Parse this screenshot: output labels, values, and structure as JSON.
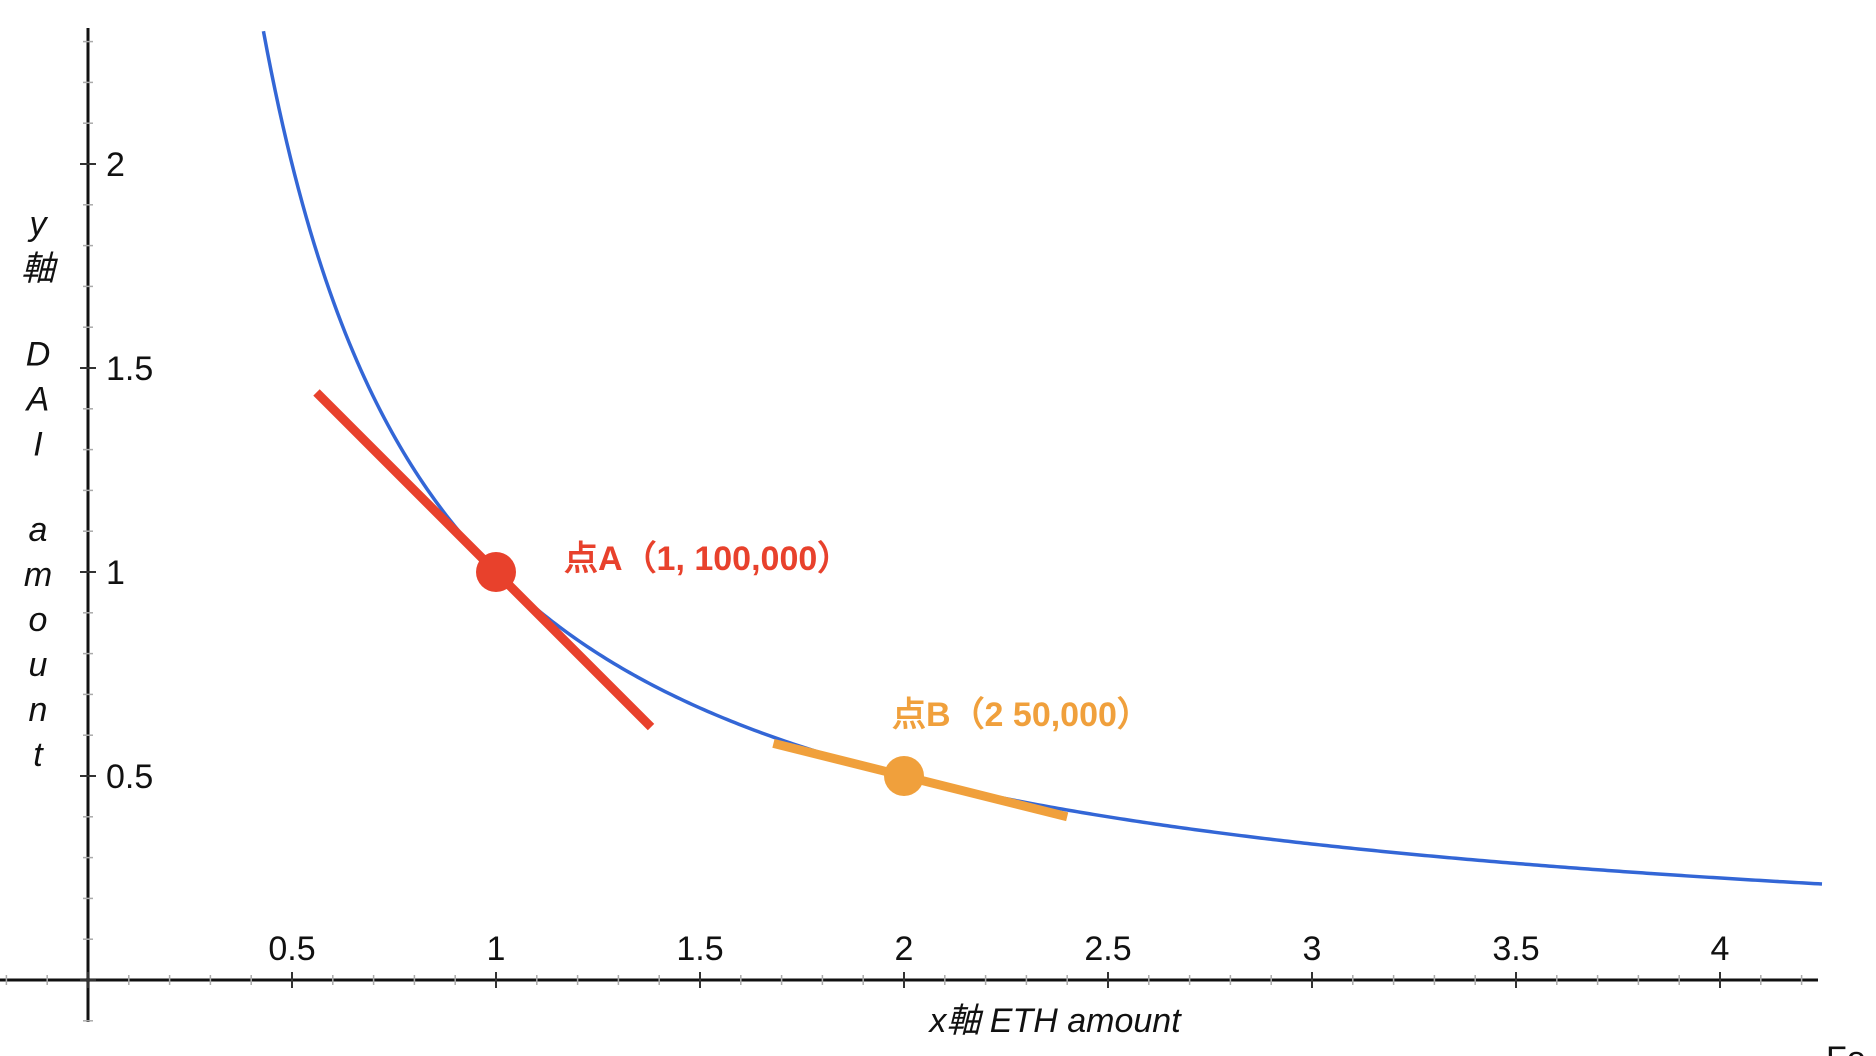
{
  "chart_data": {
    "type": "line",
    "title": "",
    "xlabel": "x軸 ETH amount",
    "ylabel": "y軸 DAI amount",
    "xlim": [
      -0.2,
      4.25
    ],
    "ylim": [
      -0.1,
      2.3
    ],
    "x_ticks": [
      0.5,
      1,
      1.5,
      2,
      2.5,
      3,
      3.5,
      4
    ],
    "x_tick_labels": [
      "0.5",
      "1",
      "1.5",
      "2",
      "2.5",
      "3",
      "3.5",
      "4"
    ],
    "y_ticks": [
      0.5,
      1,
      1.5,
      2
    ],
    "y_tick_labels": [
      "0.5",
      "1",
      "1.5",
      "2"
    ],
    "grid": false,
    "series": [
      {
        "type": "curve",
        "equation": "y = 1 / x",
        "x_range": [
          0.43,
          4.25
        ],
        "color": "#3366d6"
      }
    ],
    "points": [
      {
        "x": 1,
        "y": 1,
        "label": "点A（1, 100,000）",
        "color": "#e8412c"
      },
      {
        "x": 2,
        "y": 0.5,
        "label": "点B（2 50,000）",
        "color": "#f0a03c"
      }
    ],
    "tangents": [
      {
        "through_point": "A",
        "slope": -1,
        "x_range": [
          0.56,
          1.38
        ],
        "color": "#e8412c"
      },
      {
        "through_point": "B",
        "slope": -0.25,
        "x_range": [
          1.68,
          2.4
        ],
        "color": "#f0a03c"
      }
    ],
    "footer_text": "Fo"
  }
}
